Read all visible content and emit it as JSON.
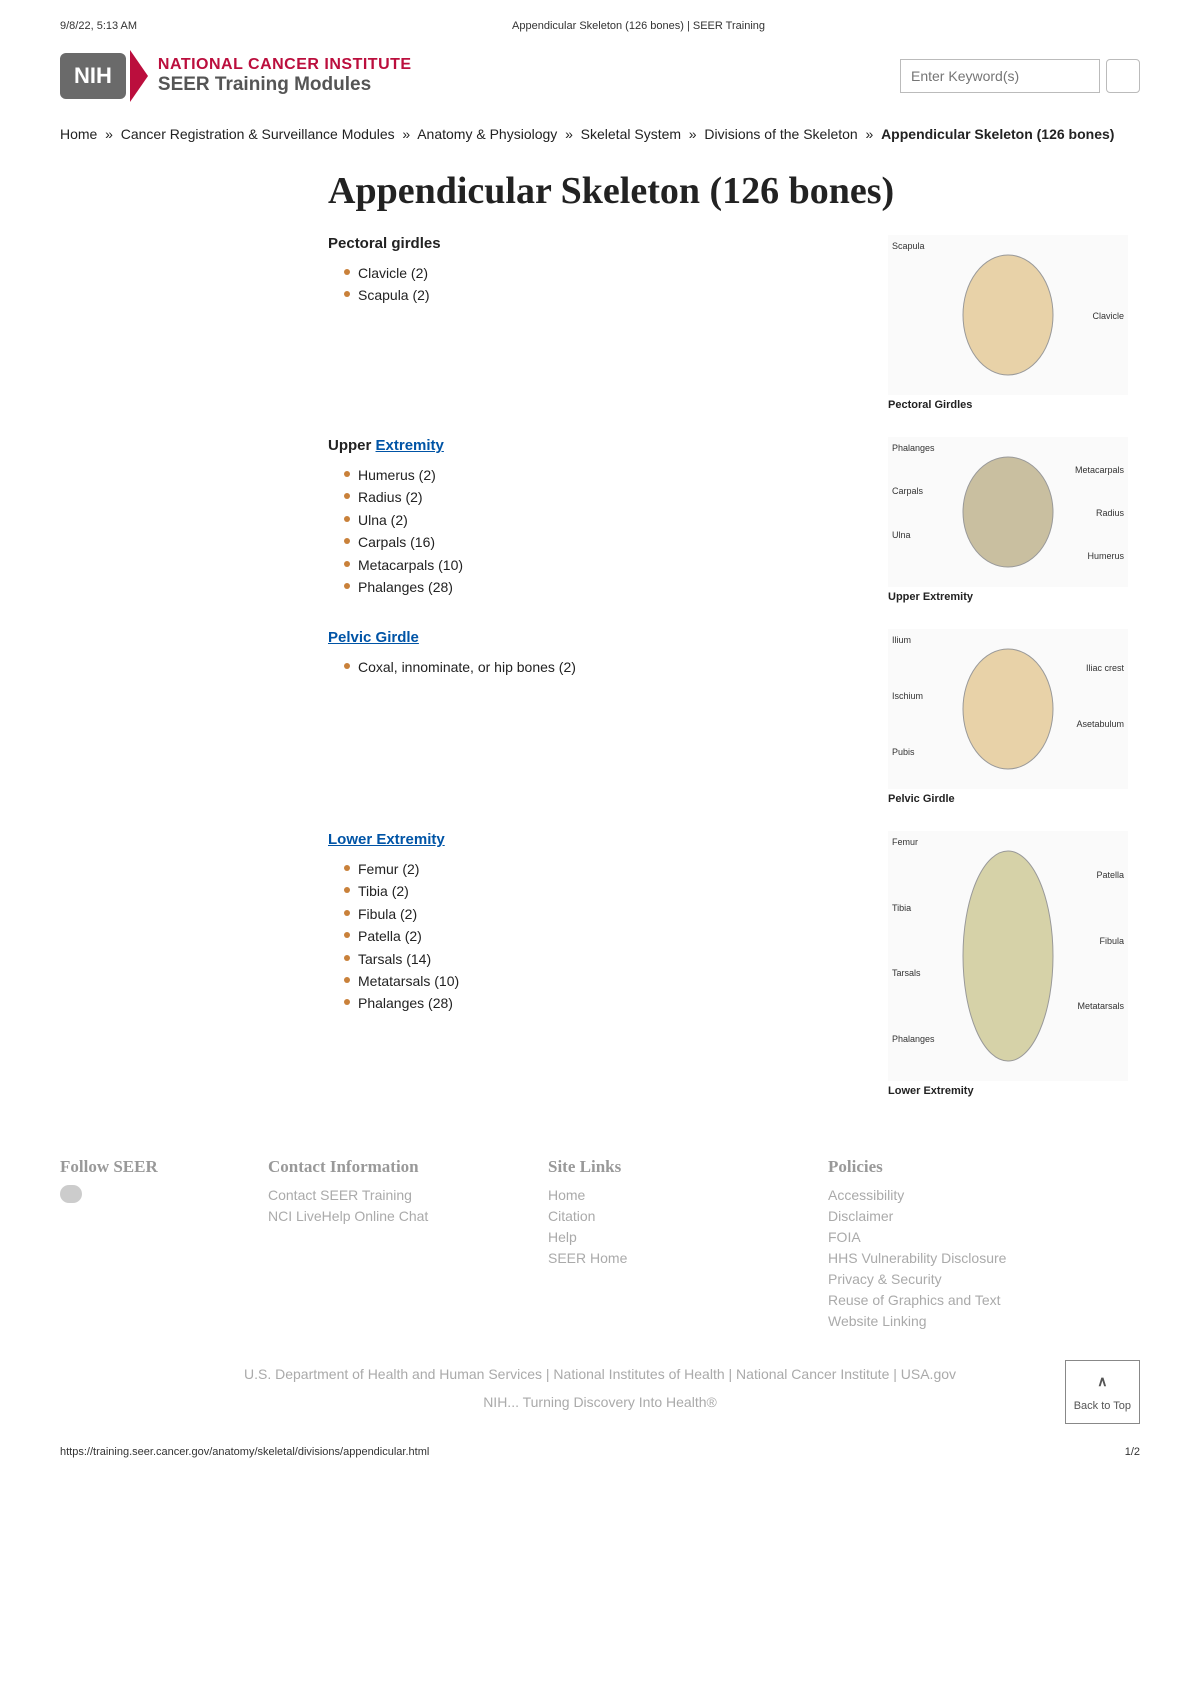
{
  "print": {
    "datetime": "9/8/22, 5:13 AM",
    "title": "Appendicular Skeleton (126 bones) | SEER Training",
    "url": "https://training.seer.cancer.gov/anatomy/skeletal/divisions/appendicular.html",
    "page": "1/2"
  },
  "logo": {
    "badge": "NIH",
    "line1": "NATIONAL CANCER INSTITUTE",
    "line2": "SEER Training Modules"
  },
  "search": {
    "placeholder": "Enter Keyword(s)"
  },
  "crumbs": [
    "Home",
    "Cancer Registration & Surveillance Modules",
    "Anatomy & Physiology",
    "Skeletal System",
    "Divisions of the Skeleton"
  ],
  "crumb_current": "Appendicular Skeleton (126 bones)",
  "h1": "Appendicular Skeleton (126 bones)",
  "sections": [
    {
      "heading": "Pectoral girdles",
      "link": false,
      "items": [
        "Clavicle (2)",
        "Scapula (2)"
      ],
      "caption": "Pectoral Girdles",
      "labels": [
        "Scapula",
        "Clavicle"
      ]
    },
    {
      "heading_pre": "Upper ",
      "heading_link": "Extremity",
      "link": true,
      "items": [
        "Humerus (2)",
        "Radius (2)",
        "Ulna (2)",
        "Carpals (16)",
        "Metacarpals (10)",
        "Phalanges (28)"
      ],
      "caption": "Upper Extremity",
      "labels": [
        "Phalanges",
        "Metacarpals",
        "Carpals",
        "Radius",
        "Ulna",
        "Humerus"
      ]
    },
    {
      "heading_link": "Pelvic Girdle",
      "link": true,
      "items": [
        "Coxal, innominate, or hip bones (2)"
      ],
      "caption": "Pelvic Girdle",
      "labels": [
        "Ilium",
        "Iliac crest",
        "Ischium",
        "Asetabulum",
        "Pubis"
      ]
    },
    {
      "heading_link": "Lower Extremity",
      "link": true,
      "items": [
        "Femur (2)",
        "Tibia (2)",
        "Fibula (2)",
        "Patella (2)",
        "Tarsals (14)",
        "Metatarsals (10)",
        "Phalanges (28)"
      ],
      "caption": "Lower Extremity",
      "labels": [
        "Femur",
        "Patella",
        "Tibia",
        "Fibula",
        "Tarsals",
        "Metatarsals",
        "Phalanges"
      ]
    }
  ],
  "footer": {
    "follow": "Follow SEER",
    "contact_h": "Contact Information",
    "contact": [
      "Contact SEER Training",
      "NCI LiveHelp Online Chat"
    ],
    "site_h": "Site Links",
    "site": [
      "Home",
      "Citation",
      "Help",
      "SEER Home"
    ],
    "pol_h": "Policies",
    "pol": [
      "Accessibility",
      "Disclaimer",
      "FOIA",
      "HHS Vulnerability Disclosure",
      "Privacy & Security",
      "Reuse of Graphics and Text",
      "Website Linking"
    ],
    "bottom1": "U.S. Department of Health and Human Services  |  National Institutes of Health  |  National Cancer Institute  |  USA.gov",
    "bottom2": "NIH... Turning Discovery Into Health®",
    "backtop": "Back to Top"
  }
}
